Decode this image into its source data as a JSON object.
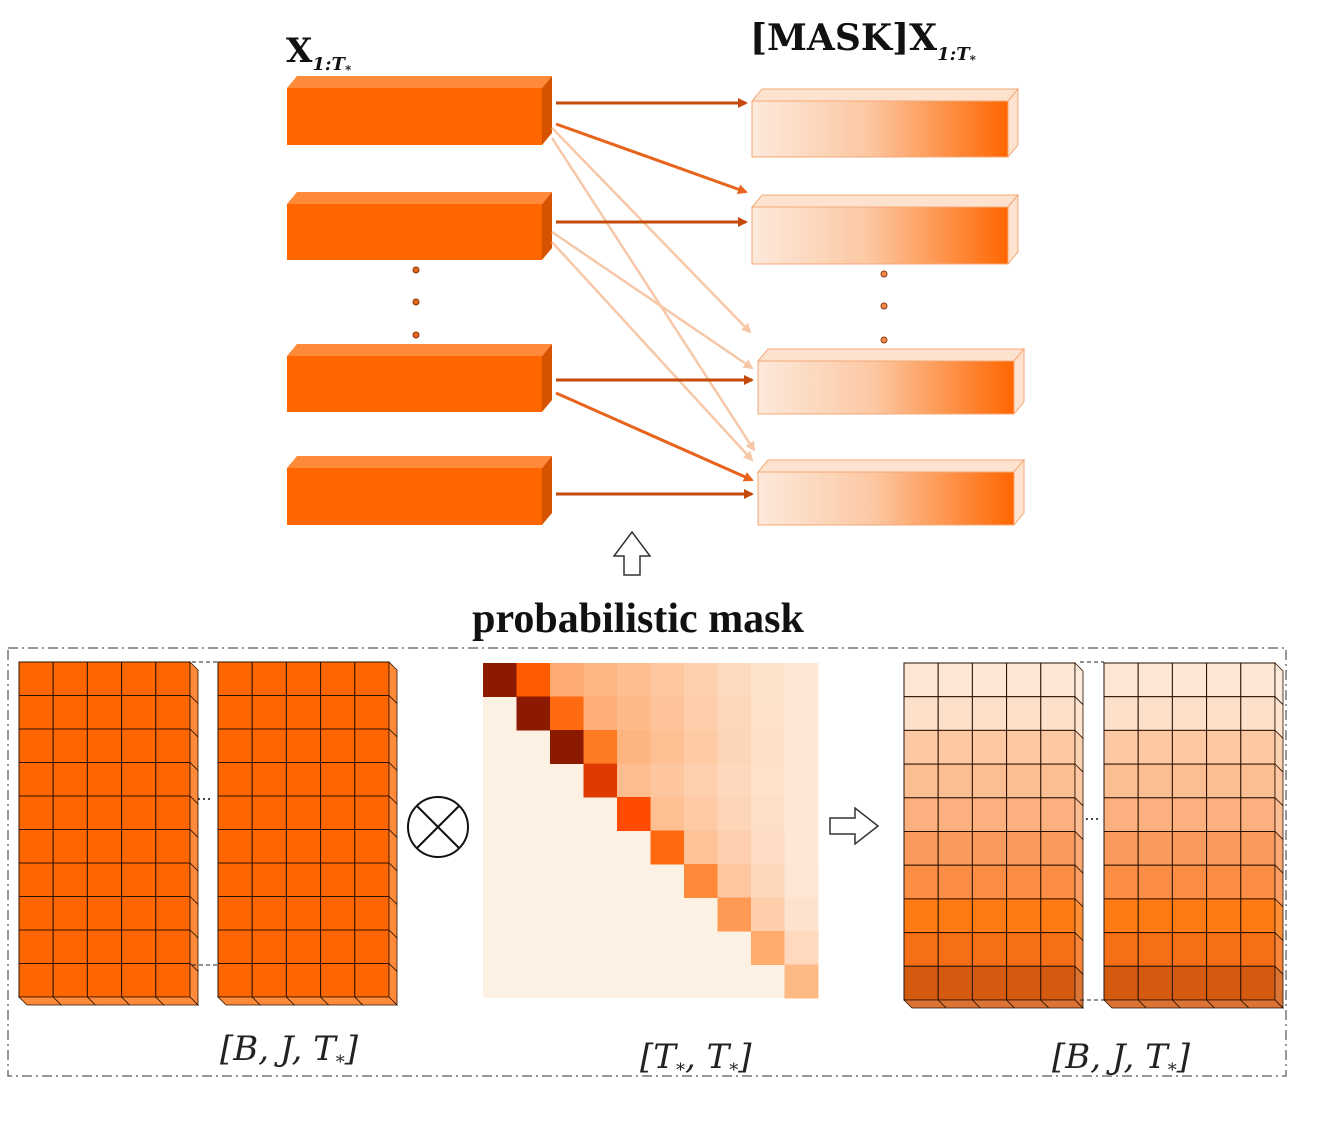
{
  "top": {
    "left_label_main": "X",
    "left_label_sub": "1:T",
    "left_label_subsub": "*",
    "right_label_prefix": "[MASK]",
    "right_label_main": "X",
    "right_label_sub": "1:T",
    "right_label_subsub": "*"
  },
  "mask_title": "probabilistic mask",
  "bottom": {
    "left_dims": "[B, J, T",
    "left_dims_sub": "*",
    "left_dims_close": "]",
    "mid_dims": "[T",
    "mid_dims_sub": "*",
    "mid_dims_sep": ", T",
    "mid_dims_sub2": "*",
    "mid_dims_close": "]",
    "right_dims": "[B, J, T",
    "right_dims_sub": "*",
    "right_dims_close": "]",
    "dots": "..."
  },
  "colors": {
    "block": "#ff6600",
    "block_top": "#ff8a3a",
    "block_side": "#d55300",
    "arrow_strong": "#c44a0a",
    "arrow_faint": "#f7c8a8",
    "mask_dark": "#8b1a00",
    "mask_light": "#fdf1e4"
  }
}
